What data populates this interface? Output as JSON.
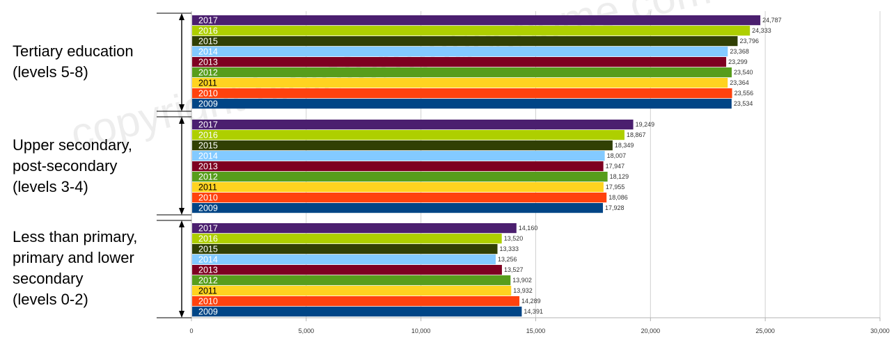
{
  "watermark": "copyright bioinformaticshome.com",
  "chart_data": {
    "type": "bar",
    "orientation": "horizontal",
    "grid": true,
    "xlim": [
      0,
      30000
    ],
    "x_ticks": [
      "0",
      "5,000",
      "10,000",
      "15,000",
      "20,000",
      "25,000",
      "30,000"
    ],
    "groups": [
      {
        "label": "Tertiary education\n(levels 5-8)",
        "years": [
          "2017",
          "2016",
          "2015",
          "2014",
          "2013",
          "2012",
          "2011",
          "2010",
          "2009"
        ],
        "values": [
          24787,
          24333,
          23796,
          23368,
          23299,
          23540,
          23364,
          23556,
          23534
        ],
        "value_labels": [
          "24,787",
          "24,333",
          "23,796",
          "23,368",
          "23,299",
          "23,540",
          "23,364",
          "23,556",
          "23,534"
        ]
      },
      {
        "label": "Upper secondary,\npost-secondary\n(levels 3-4)",
        "years": [
          "2017",
          "2016",
          "2015",
          "2014",
          "2013",
          "2012",
          "2011",
          "2010",
          "2009"
        ],
        "values": [
          19249,
          18867,
          18349,
          18007,
          17947,
          18129,
          17955,
          18086,
          17928
        ],
        "value_labels": [
          "19,249",
          "18,867",
          "18,349",
          "18,007",
          "17,947",
          "18,129",
          "17,955",
          "18,086",
          "17,928"
        ]
      },
      {
        "label": "Less than primary,\nprimary and lower\nsecondary\n(levels 0-2)",
        "years": [
          "2017",
          "2016",
          "2015",
          "2014",
          "2013",
          "2012",
          "2011",
          "2010",
          "2009"
        ],
        "values": [
          14160,
          13520,
          13333,
          13256,
          13527,
          13902,
          13932,
          14289,
          14391
        ],
        "value_labels": [
          "14,160",
          "13,520",
          "13,333",
          "13,256",
          "13,527",
          "13,902",
          "13,932",
          "14,289",
          "14,391"
        ]
      }
    ],
    "year_colors": {
      "2017": "#4b1f6f",
      "2016": "#aecf00",
      "2015": "#314004",
      "2014": "#83caff",
      "2013": "#7e0021",
      "2012": "#579d1c",
      "2011": "#ffd320",
      "2010": "#ff420e",
      "2009": "#004586"
    },
    "year_text_colors": {
      "2017": "#ffffff",
      "2016": "#ffffff",
      "2015": "#ffffff",
      "2014": "#ffffff",
      "2013": "#ffffff",
      "2012": "#ffffff",
      "2011": "#000000",
      "2010": "#ffffff",
      "2009": "#ffffff"
    }
  }
}
